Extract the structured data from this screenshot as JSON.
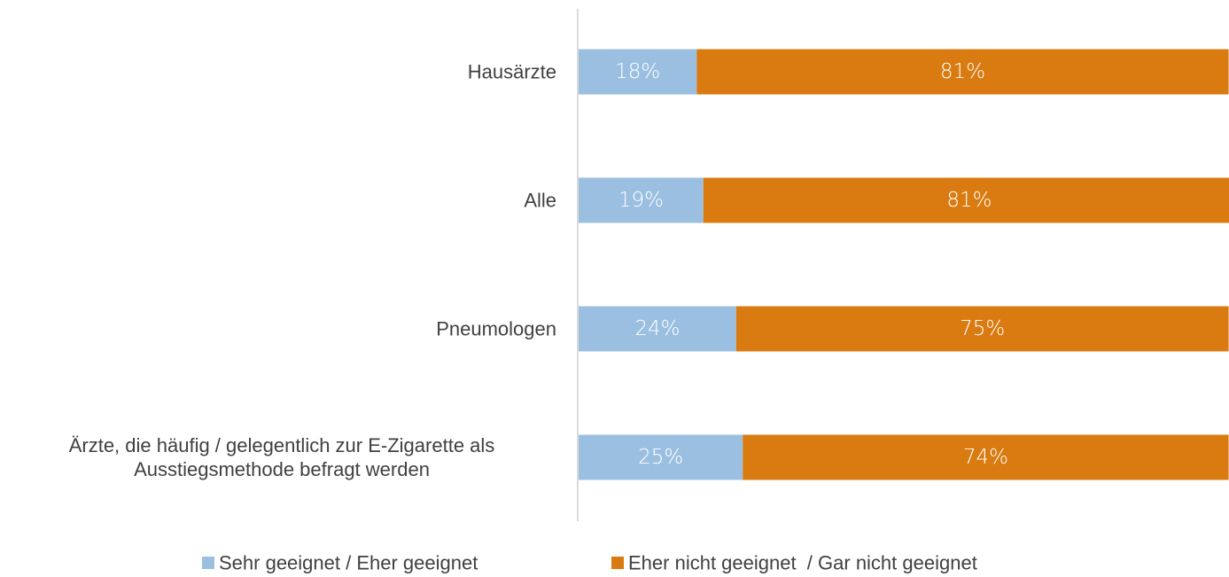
{
  "chart_data": {
    "type": "stacked_barh",
    "categories": [
      "Hausärzte",
      "Alle",
      "Pneumologen",
      "Ärzte, die häufig / gelegentlich zur E-Zigarette als Ausstiegsmethode befragt werden"
    ],
    "series": [
      {
        "name": "Sehr geeignet / Eher geeignet",
        "color": "#9bbfe0",
        "values": [
          18,
          19,
          24,
          25
        ],
        "value_labels": [
          "18%",
          "19%",
          "24%",
          "25%"
        ]
      },
      {
        "name": "Eher nicht geeignet  / Gar nicht geeignet",
        "color": "#d97b10",
        "values": [
          81,
          81,
          75,
          74
        ],
        "value_labels": [
          "81%",
          "81%",
          "75%",
          "74%"
        ]
      }
    ],
    "xlim": [
      0,
      100
    ]
  }
}
